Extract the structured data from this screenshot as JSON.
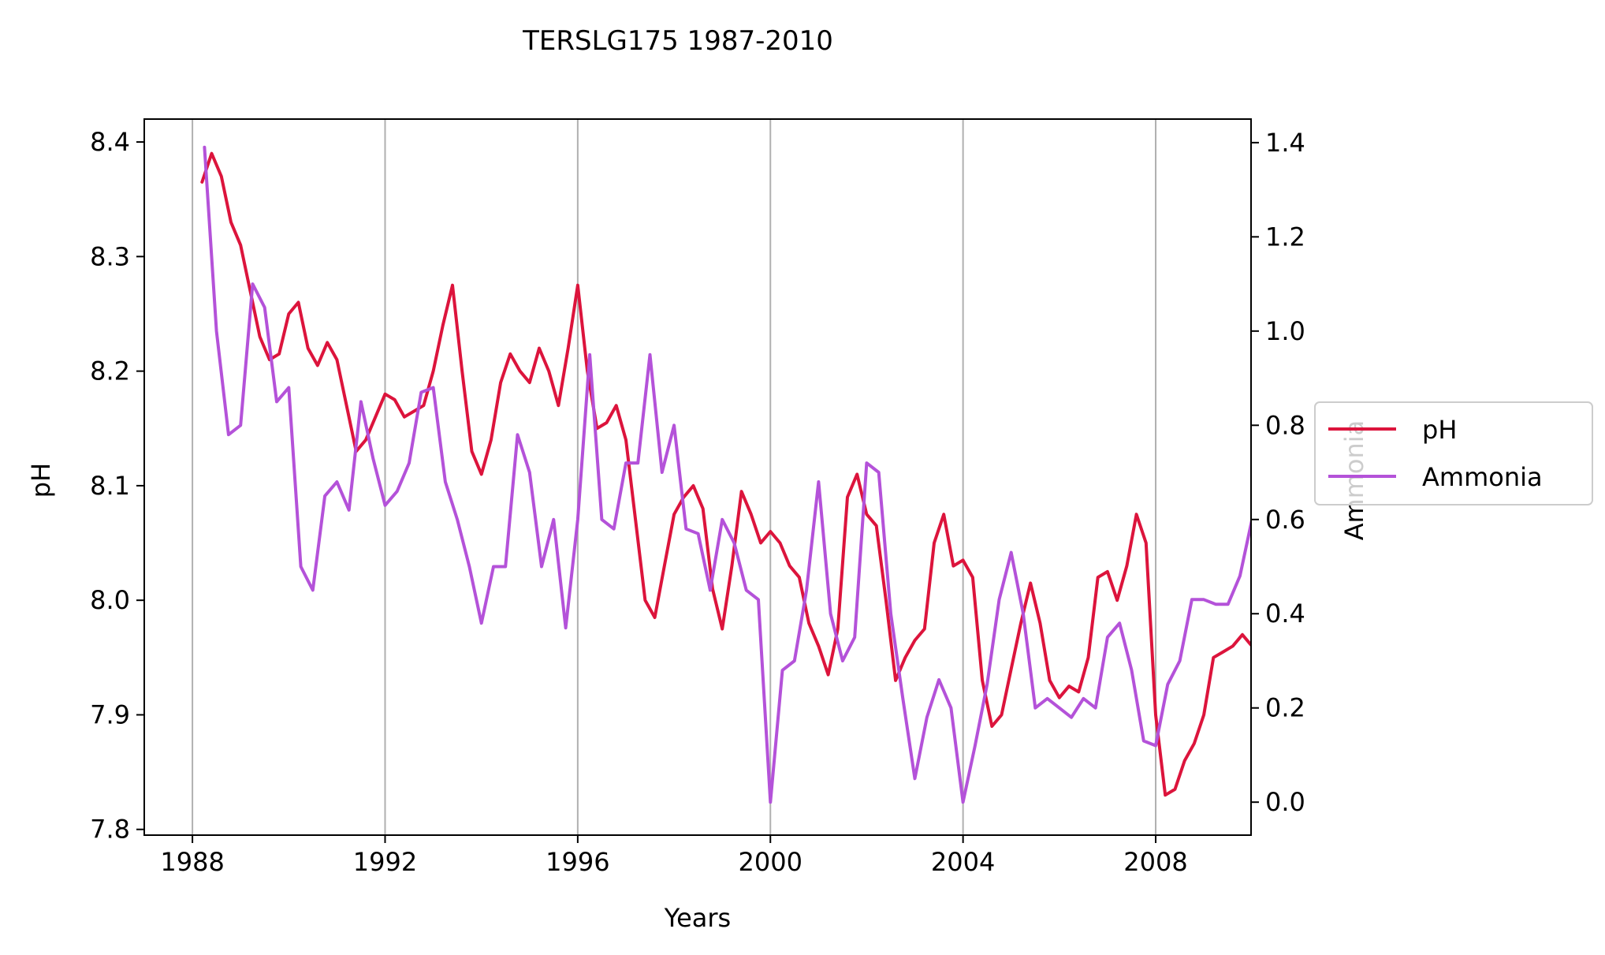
{
  "chart_data": {
    "type": "line",
    "title": "TERSLG175 1987-2010",
    "xlabel": "Years",
    "ylabel": "pH",
    "y2label": "Ammonia",
    "xlim": [
      1987.0,
      2009.98
    ],
    "ylim": [
      7.795,
      8.42
    ],
    "y2lim": [
      -0.07,
      1.45
    ],
    "xticks": [
      1988,
      1992,
      1996,
      2000,
      2004,
      2008
    ],
    "yticks": [
      "7.8",
      "7.9",
      "8.0",
      "8.1",
      "8.2",
      "8.3",
      "8.4"
    ],
    "y2ticks": [
      "0.0",
      "0.2",
      "0.4",
      "0.6",
      "0.8",
      "1.0",
      "1.2",
      "1.4"
    ],
    "grid": "vertical",
    "legend_position": "right",
    "series": [
      {
        "name": "pH",
        "color": "#dc143c",
        "axis": "left",
        "points": [
          [
            1988.2,
            8.365
          ],
          [
            1988.4,
            8.39
          ],
          [
            1988.6,
            8.37
          ],
          [
            1988.8,
            8.33
          ],
          [
            1989.0,
            8.31
          ],
          [
            1989.2,
            8.27
          ],
          [
            1989.4,
            8.23
          ],
          [
            1989.6,
            8.21
          ],
          [
            1989.8,
            8.215
          ],
          [
            1990.0,
            8.25
          ],
          [
            1990.2,
            8.26
          ],
          [
            1990.4,
            8.22
          ],
          [
            1990.6,
            8.205
          ],
          [
            1990.8,
            8.225
          ],
          [
            1991.0,
            8.21
          ],
          [
            1991.2,
            8.17
          ],
          [
            1991.4,
            8.13
          ],
          [
            1991.6,
            8.14
          ],
          [
            1991.8,
            8.16
          ],
          [
            1992.0,
            8.18
          ],
          [
            1992.2,
            8.175
          ],
          [
            1992.4,
            8.16
          ],
          [
            1992.6,
            8.165
          ],
          [
            1992.8,
            8.17
          ],
          [
            1993.0,
            8.2
          ],
          [
            1993.2,
            8.24
          ],
          [
            1993.4,
            8.275
          ],
          [
            1993.6,
            8.2
          ],
          [
            1993.8,
            8.13
          ],
          [
            1994.0,
            8.11
          ],
          [
            1994.2,
            8.14
          ],
          [
            1994.4,
            8.19
          ],
          [
            1994.6,
            8.215
          ],
          [
            1994.8,
            8.2
          ],
          [
            1995.0,
            8.19
          ],
          [
            1995.2,
            8.22
          ],
          [
            1995.4,
            8.2
          ],
          [
            1995.6,
            8.17
          ],
          [
            1995.8,
            8.22
          ],
          [
            1996.0,
            8.275
          ],
          [
            1996.2,
            8.2
          ],
          [
            1996.4,
            8.15
          ],
          [
            1996.6,
            8.155
          ],
          [
            1996.8,
            8.17
          ],
          [
            1997.0,
            8.14
          ],
          [
            1997.2,
            8.07
          ],
          [
            1997.4,
            8.0
          ],
          [
            1997.6,
            7.985
          ],
          [
            1997.8,
            8.03
          ],
          [
            1998.0,
            8.075
          ],
          [
            1998.2,
            8.09
          ],
          [
            1998.4,
            8.1
          ],
          [
            1998.6,
            8.08
          ],
          [
            1998.8,
            8.01
          ],
          [
            1999.0,
            7.975
          ],
          [
            1999.2,
            8.03
          ],
          [
            1999.4,
            8.095
          ],
          [
            1999.6,
            8.075
          ],
          [
            1999.8,
            8.05
          ],
          [
            2000.0,
            8.06
          ],
          [
            2000.2,
            8.05
          ],
          [
            2000.4,
            8.03
          ],
          [
            2000.6,
            8.02
          ],
          [
            2000.8,
            7.98
          ],
          [
            2001.0,
            7.96
          ],
          [
            2001.2,
            7.935
          ],
          [
            2001.4,
            7.975
          ],
          [
            2001.6,
            8.09
          ],
          [
            2001.8,
            8.11
          ],
          [
            2002.0,
            8.075
          ],
          [
            2002.2,
            8.065
          ],
          [
            2002.4,
            8.0
          ],
          [
            2002.6,
            7.93
          ],
          [
            2002.8,
            7.95
          ],
          [
            2003.0,
            7.965
          ],
          [
            2003.2,
            7.975
          ],
          [
            2003.4,
            8.05
          ],
          [
            2003.6,
            8.075
          ],
          [
            2003.8,
            8.03
          ],
          [
            2004.0,
            8.035
          ],
          [
            2004.2,
            8.02
          ],
          [
            2004.4,
            7.93
          ],
          [
            2004.6,
            7.89
          ],
          [
            2004.8,
            7.9
          ],
          [
            2005.0,
            7.94
          ],
          [
            2005.2,
            7.98
          ],
          [
            2005.4,
            8.015
          ],
          [
            2005.6,
            7.98
          ],
          [
            2005.8,
            7.93
          ],
          [
            2006.0,
            7.915
          ],
          [
            2006.2,
            7.925
          ],
          [
            2006.4,
            7.92
          ],
          [
            2006.6,
            7.95
          ],
          [
            2006.8,
            8.02
          ],
          [
            2007.0,
            8.025
          ],
          [
            2007.2,
            8.0
          ],
          [
            2007.4,
            8.03
          ],
          [
            2007.6,
            8.075
          ],
          [
            2007.8,
            8.05
          ],
          [
            2008.0,
            7.9
          ],
          [
            2008.2,
            7.83
          ],
          [
            2008.4,
            7.835
          ],
          [
            2008.6,
            7.86
          ],
          [
            2008.8,
            7.875
          ],
          [
            2009.0,
            7.9
          ],
          [
            2009.2,
            7.95
          ],
          [
            2009.4,
            7.955
          ],
          [
            2009.6,
            7.96
          ],
          [
            2009.8,
            7.97
          ],
          [
            2010.0,
            7.96
          ],
          [
            2010.2,
            7.885
          ]
        ]
      },
      {
        "name": "Ammonia",
        "color": "#b452d9",
        "axis": "right",
        "points": [
          [
            1988.25,
            1.39
          ],
          [
            1988.5,
            1.0
          ],
          [
            1988.75,
            0.78
          ],
          [
            1989.0,
            0.8
          ],
          [
            1989.25,
            1.1
          ],
          [
            1989.5,
            1.05
          ],
          [
            1989.75,
            0.85
          ],
          [
            1990.0,
            0.88
          ],
          [
            1990.25,
            0.5
          ],
          [
            1990.5,
            0.45
          ],
          [
            1990.75,
            0.65
          ],
          [
            1991.0,
            0.68
          ],
          [
            1991.25,
            0.62
          ],
          [
            1991.5,
            0.85
          ],
          [
            1991.75,
            0.73
          ],
          [
            1992.0,
            0.63
          ],
          [
            1992.25,
            0.66
          ],
          [
            1992.5,
            0.72
          ],
          [
            1992.75,
            0.87
          ],
          [
            1993.0,
            0.88
          ],
          [
            1993.25,
            0.68
          ],
          [
            1993.5,
            0.6
          ],
          [
            1993.75,
            0.5
          ],
          [
            1994.0,
            0.38
          ],
          [
            1994.25,
            0.5
          ],
          [
            1994.5,
            0.5
          ],
          [
            1994.75,
            0.78
          ],
          [
            1995.0,
            0.7
          ],
          [
            1995.25,
            0.5
          ],
          [
            1995.5,
            0.6
          ],
          [
            1995.75,
            0.37
          ],
          [
            1996.0,
            0.6
          ],
          [
            1996.25,
            0.95
          ],
          [
            1996.5,
            0.6
          ],
          [
            1996.75,
            0.58
          ],
          [
            1997.0,
            0.72
          ],
          [
            1997.25,
            0.72
          ],
          [
            1997.5,
            0.95
          ],
          [
            1997.75,
            0.7
          ],
          [
            1998.0,
            0.8
          ],
          [
            1998.25,
            0.58
          ],
          [
            1998.5,
            0.57
          ],
          [
            1998.75,
            0.45
          ],
          [
            1999.0,
            0.6
          ],
          [
            1999.25,
            0.55
          ],
          [
            1999.5,
            0.45
          ],
          [
            1999.75,
            0.43
          ],
          [
            2000.0,
            0.0
          ],
          [
            2000.25,
            0.28
          ],
          [
            2000.5,
            0.3
          ],
          [
            2000.75,
            0.45
          ],
          [
            2001.0,
            0.68
          ],
          [
            2001.25,
            0.4
          ],
          [
            2001.5,
            0.3
          ],
          [
            2001.75,
            0.35
          ],
          [
            2002.0,
            0.72
          ],
          [
            2002.25,
            0.7
          ],
          [
            2002.5,
            0.4
          ],
          [
            2002.75,
            0.22
          ],
          [
            2003.0,
            0.05
          ],
          [
            2003.25,
            0.18
          ],
          [
            2003.5,
            0.26
          ],
          [
            2003.75,
            0.2
          ],
          [
            2004.0,
            0.0
          ],
          [
            2004.25,
            0.12
          ],
          [
            2004.5,
            0.25
          ],
          [
            2004.75,
            0.43
          ],
          [
            2005.0,
            0.53
          ],
          [
            2005.25,
            0.4
          ],
          [
            2005.5,
            0.2
          ],
          [
            2005.75,
            0.22
          ],
          [
            2006.0,
            0.2
          ],
          [
            2006.25,
            0.18
          ],
          [
            2006.5,
            0.22
          ],
          [
            2006.75,
            0.2
          ],
          [
            2007.0,
            0.35
          ],
          [
            2007.25,
            0.38
          ],
          [
            2007.5,
            0.28
          ],
          [
            2007.75,
            0.13
          ],
          [
            2008.0,
            0.12
          ],
          [
            2008.25,
            0.25
          ],
          [
            2008.5,
            0.3
          ],
          [
            2008.75,
            0.43
          ],
          [
            2009.0,
            0.43
          ],
          [
            2009.25,
            0.42
          ],
          [
            2009.5,
            0.42
          ],
          [
            2009.75,
            0.48
          ],
          [
            2010.0,
            0.6
          ]
        ]
      }
    ]
  }
}
